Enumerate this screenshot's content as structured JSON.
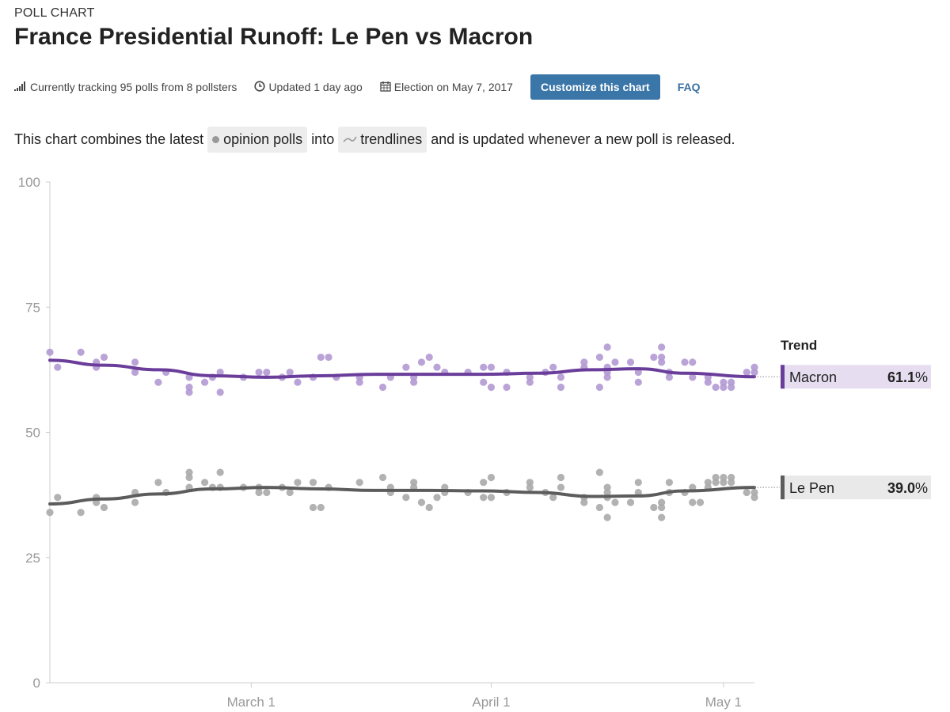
{
  "header": {
    "kicker": "POLL CHART",
    "title": "France Presidential Runoff: Le Pen vs Macron"
  },
  "meta": {
    "tracking": "Currently tracking 95 polls from 8 pollsters",
    "updated": "Updated 1 day ago",
    "election": "Election on May 7, 2017",
    "customize_label": "Customize this chart",
    "faq_label": "FAQ",
    "icons": [
      "signal-bars-icon",
      "clock-icon",
      "calendar-icon"
    ]
  },
  "description": {
    "part1": "This chart combines the latest",
    "pill1": "opinion polls",
    "part2": "into",
    "pill2": "trendlines",
    "part3": "and is updated whenever a new poll is released."
  },
  "colors": {
    "macron": "#6a3d9a",
    "macron_points": "#b39ad3",
    "lepen": "#5c5c5c",
    "lepen_points": "#aaaaaa",
    "accent": "#3a76a8"
  },
  "chart_data": {
    "type": "scatter",
    "y_ticks": [
      "0",
      "25",
      "50",
      "75",
      "100"
    ],
    "ylim": [
      0,
      100
    ],
    "x_ticks": [
      {
        "label": "March 1",
        "date": "2017-03-01"
      },
      {
        "label": "April 1",
        "date": "2017-04-01"
      },
      {
        "label": "May 1",
        "date": "2017-05-01"
      }
    ],
    "xlim": [
      "2017-02-03",
      "2017-05-05"
    ],
    "legend_title": "Trend",
    "series": [
      {
        "name": "Macron",
        "value_label": "61.1%",
        "trend": [
          {
            "x": "2017-02-03",
            "y": 64.4
          },
          {
            "x": "2017-02-10",
            "y": 63.4
          },
          {
            "x": "2017-02-17",
            "y": 62.5
          },
          {
            "x": "2017-02-24",
            "y": 61.3
          },
          {
            "x": "2017-03-03",
            "y": 61.0
          },
          {
            "x": "2017-03-10",
            "y": 61.3
          },
          {
            "x": "2017-03-17",
            "y": 61.6
          },
          {
            "x": "2017-03-24",
            "y": 61.6
          },
          {
            "x": "2017-03-31",
            "y": 61.6
          },
          {
            "x": "2017-04-07",
            "y": 61.8
          },
          {
            "x": "2017-04-14",
            "y": 62.5
          },
          {
            "x": "2017-04-20",
            "y": 62.7
          },
          {
            "x": "2017-04-26",
            "y": 61.8
          },
          {
            "x": "2017-05-05",
            "y": 61.1
          }
        ],
        "polls": [
          {
            "x": "2017-02-03",
            "y": 66
          },
          {
            "x": "2017-02-04",
            "y": 63
          },
          {
            "x": "2017-02-07",
            "y": 66
          },
          {
            "x": "2017-02-09",
            "y": 64
          },
          {
            "x": "2017-02-09",
            "y": 63
          },
          {
            "x": "2017-02-10",
            "y": 65
          },
          {
            "x": "2017-02-14",
            "y": 64
          },
          {
            "x": "2017-02-14",
            "y": 62
          },
          {
            "x": "2017-02-17",
            "y": 60
          },
          {
            "x": "2017-02-18",
            "y": 62
          },
          {
            "x": "2017-02-21",
            "y": 61
          },
          {
            "x": "2017-02-21",
            "y": 59
          },
          {
            "x": "2017-02-21",
            "y": 58
          },
          {
            "x": "2017-02-23",
            "y": 60
          },
          {
            "x": "2017-02-24",
            "y": 61
          },
          {
            "x": "2017-02-25",
            "y": 62
          },
          {
            "x": "2017-02-25",
            "y": 58
          },
          {
            "x": "2017-02-28",
            "y": 61
          },
          {
            "x": "2017-03-02",
            "y": 62
          },
          {
            "x": "2017-03-03",
            "y": 62
          },
          {
            "x": "2017-03-05",
            "y": 61
          },
          {
            "x": "2017-03-06",
            "y": 62
          },
          {
            "x": "2017-03-07",
            "y": 60
          },
          {
            "x": "2017-03-09",
            "y": 61
          },
          {
            "x": "2017-03-10",
            "y": 65
          },
          {
            "x": "2017-03-11",
            "y": 65
          },
          {
            "x": "2017-03-12",
            "y": 61
          },
          {
            "x": "2017-03-15",
            "y": 61
          },
          {
            "x": "2017-03-15",
            "y": 60
          },
          {
            "x": "2017-03-18",
            "y": 59
          },
          {
            "x": "2017-03-19",
            "y": 61
          },
          {
            "x": "2017-03-21",
            "y": 63
          },
          {
            "x": "2017-03-22",
            "y": 61
          },
          {
            "x": "2017-03-22",
            "y": 60
          },
          {
            "x": "2017-03-23",
            "y": 64
          },
          {
            "x": "2017-03-24",
            "y": 65
          },
          {
            "x": "2017-03-25",
            "y": 63
          },
          {
            "x": "2017-03-26",
            "y": 62
          },
          {
            "x": "2017-03-29",
            "y": 62
          },
          {
            "x": "2017-03-31",
            "y": 63
          },
          {
            "x": "2017-03-31",
            "y": 60
          },
          {
            "x": "2017-04-01",
            "y": 63
          },
          {
            "x": "2017-04-01",
            "y": 59
          },
          {
            "x": "2017-04-03",
            "y": 62
          },
          {
            "x": "2017-04-03",
            "y": 59
          },
          {
            "x": "2017-04-06",
            "y": 61
          },
          {
            "x": "2017-04-06",
            "y": 60
          },
          {
            "x": "2017-04-08",
            "y": 62
          },
          {
            "x": "2017-04-09",
            "y": 63
          },
          {
            "x": "2017-04-10",
            "y": 61
          },
          {
            "x": "2017-04-10",
            "y": 59
          },
          {
            "x": "2017-04-13",
            "y": 64
          },
          {
            "x": "2017-04-13",
            "y": 63
          },
          {
            "x": "2017-04-15",
            "y": 65
          },
          {
            "x": "2017-04-15",
            "y": 59
          },
          {
            "x": "2017-04-16",
            "y": 67
          },
          {
            "x": "2017-04-16",
            "y": 63
          },
          {
            "x": "2017-04-16",
            "y": 62
          },
          {
            "x": "2017-04-16",
            "y": 61
          },
          {
            "x": "2017-04-17",
            "y": 64
          },
          {
            "x": "2017-04-19",
            "y": 64
          },
          {
            "x": "2017-04-20",
            "y": 62
          },
          {
            "x": "2017-04-20",
            "y": 60
          },
          {
            "x": "2017-04-22",
            "y": 65
          },
          {
            "x": "2017-04-23",
            "y": 67
          },
          {
            "x": "2017-04-23",
            "y": 65
          },
          {
            "x": "2017-04-23",
            "y": 64
          },
          {
            "x": "2017-04-24",
            "y": 62
          },
          {
            "x": "2017-04-24",
            "y": 61
          },
          {
            "x": "2017-04-26",
            "y": 64
          },
          {
            "x": "2017-04-27",
            "y": 64
          },
          {
            "x": "2017-04-27",
            "y": 61
          },
          {
            "x": "2017-04-29",
            "y": 61
          },
          {
            "x": "2017-04-29",
            "y": 60
          },
          {
            "x": "2017-04-30",
            "y": 59
          },
          {
            "x": "2017-05-01",
            "y": 60
          },
          {
            "x": "2017-05-01",
            "y": 59
          },
          {
            "x": "2017-05-02",
            "y": 60
          },
          {
            "x": "2017-05-02",
            "y": 59
          },
          {
            "x": "2017-05-04",
            "y": 62
          },
          {
            "x": "2017-05-05",
            "y": 63
          },
          {
            "x": "2017-05-05",
            "y": 62
          }
        ]
      },
      {
        "name": "Le Pen",
        "value_label": "39.0%",
        "trend": [
          {
            "x": "2017-02-03",
            "y": 35.7
          },
          {
            "x": "2017-02-10",
            "y": 36.7
          },
          {
            "x": "2017-02-17",
            "y": 37.7
          },
          {
            "x": "2017-02-24",
            "y": 38.7
          },
          {
            "x": "2017-03-03",
            "y": 39.0
          },
          {
            "x": "2017-03-10",
            "y": 38.7
          },
          {
            "x": "2017-03-17",
            "y": 38.4
          },
          {
            "x": "2017-03-24",
            "y": 38.4
          },
          {
            "x": "2017-03-31",
            "y": 38.3
          },
          {
            "x": "2017-04-07",
            "y": 38.0
          },
          {
            "x": "2017-04-14",
            "y": 37.2
          },
          {
            "x": "2017-04-20",
            "y": 37.3
          },
          {
            "x": "2017-04-26",
            "y": 38.3
          },
          {
            "x": "2017-05-05",
            "y": 39.0
          }
        ],
        "polls": [
          {
            "x": "2017-02-03",
            "y": 34
          },
          {
            "x": "2017-02-04",
            "y": 37
          },
          {
            "x": "2017-02-07",
            "y": 34
          },
          {
            "x": "2017-02-09",
            "y": 37
          },
          {
            "x": "2017-02-09",
            "y": 36
          },
          {
            "x": "2017-02-10",
            "y": 35
          },
          {
            "x": "2017-02-14",
            "y": 38
          },
          {
            "x": "2017-02-14",
            "y": 36
          },
          {
            "x": "2017-02-17",
            "y": 40
          },
          {
            "x": "2017-02-18",
            "y": 38
          },
          {
            "x": "2017-02-21",
            "y": 42
          },
          {
            "x": "2017-02-21",
            "y": 41
          },
          {
            "x": "2017-02-21",
            "y": 39
          },
          {
            "x": "2017-02-23",
            "y": 40
          },
          {
            "x": "2017-02-24",
            "y": 39
          },
          {
            "x": "2017-02-25",
            "y": 42
          },
          {
            "x": "2017-02-25",
            "y": 39
          },
          {
            "x": "2017-02-28",
            "y": 39
          },
          {
            "x": "2017-03-02",
            "y": 39
          },
          {
            "x": "2017-03-02",
            "y": 38
          },
          {
            "x": "2017-03-03",
            "y": 38
          },
          {
            "x": "2017-03-05",
            "y": 39
          },
          {
            "x": "2017-03-06",
            "y": 38
          },
          {
            "x": "2017-03-07",
            "y": 40
          },
          {
            "x": "2017-03-09",
            "y": 40
          },
          {
            "x": "2017-03-09",
            "y": 35
          },
          {
            "x": "2017-03-10",
            "y": 35
          },
          {
            "x": "2017-03-11",
            "y": 39
          },
          {
            "x": "2017-03-15",
            "y": 40
          },
          {
            "x": "2017-03-18",
            "y": 41
          },
          {
            "x": "2017-03-19",
            "y": 39
          },
          {
            "x": "2017-03-19",
            "y": 38
          },
          {
            "x": "2017-03-21",
            "y": 37
          },
          {
            "x": "2017-03-22",
            "y": 40
          },
          {
            "x": "2017-03-22",
            "y": 39
          },
          {
            "x": "2017-03-23",
            "y": 36
          },
          {
            "x": "2017-03-24",
            "y": 35
          },
          {
            "x": "2017-03-25",
            "y": 37
          },
          {
            "x": "2017-03-26",
            "y": 39
          },
          {
            "x": "2017-03-26",
            "y": 38
          },
          {
            "x": "2017-03-29",
            "y": 38
          },
          {
            "x": "2017-03-31",
            "y": 40
          },
          {
            "x": "2017-03-31",
            "y": 37
          },
          {
            "x": "2017-04-01",
            "y": 41
          },
          {
            "x": "2017-04-01",
            "y": 37
          },
          {
            "x": "2017-04-03",
            "y": 38
          },
          {
            "x": "2017-04-06",
            "y": 40
          },
          {
            "x": "2017-04-06",
            "y": 39
          },
          {
            "x": "2017-04-08",
            "y": 38
          },
          {
            "x": "2017-04-09",
            "y": 37
          },
          {
            "x": "2017-04-10",
            "y": 41
          },
          {
            "x": "2017-04-10",
            "y": 39
          },
          {
            "x": "2017-04-13",
            "y": 37
          },
          {
            "x": "2017-04-13",
            "y": 36
          },
          {
            "x": "2017-04-15",
            "y": 42
          },
          {
            "x": "2017-04-15",
            "y": 35
          },
          {
            "x": "2017-04-16",
            "y": 39
          },
          {
            "x": "2017-04-16",
            "y": 38
          },
          {
            "x": "2017-04-16",
            "y": 37
          },
          {
            "x": "2017-04-16",
            "y": 33
          },
          {
            "x": "2017-04-17",
            "y": 36
          },
          {
            "x": "2017-04-19",
            "y": 36
          },
          {
            "x": "2017-04-20",
            "y": 40
          },
          {
            "x": "2017-04-20",
            "y": 38
          },
          {
            "x": "2017-04-22",
            "y": 35
          },
          {
            "x": "2017-04-23",
            "y": 36
          },
          {
            "x": "2017-04-23",
            "y": 35
          },
          {
            "x": "2017-04-23",
            "y": 33
          },
          {
            "x": "2017-04-24",
            "y": 40
          },
          {
            "x": "2017-04-24",
            "y": 38
          },
          {
            "x": "2017-04-26",
            "y": 38
          },
          {
            "x": "2017-04-27",
            "y": 36
          },
          {
            "x": "2017-04-27",
            "y": 39
          },
          {
            "x": "2017-04-28",
            "y": 36
          },
          {
            "x": "2017-04-29",
            "y": 40
          },
          {
            "x": "2017-04-29",
            "y": 39
          },
          {
            "x": "2017-04-30",
            "y": 41
          },
          {
            "x": "2017-04-30",
            "y": 40
          },
          {
            "x": "2017-05-01",
            "y": 41
          },
          {
            "x": "2017-05-01",
            "y": 40
          },
          {
            "x": "2017-05-02",
            "y": 41
          },
          {
            "x": "2017-05-02",
            "y": 40
          },
          {
            "x": "2017-05-04",
            "y": 38
          },
          {
            "x": "2017-05-05",
            "y": 38
          },
          {
            "x": "2017-05-05",
            "y": 37
          }
        ]
      }
    ]
  }
}
